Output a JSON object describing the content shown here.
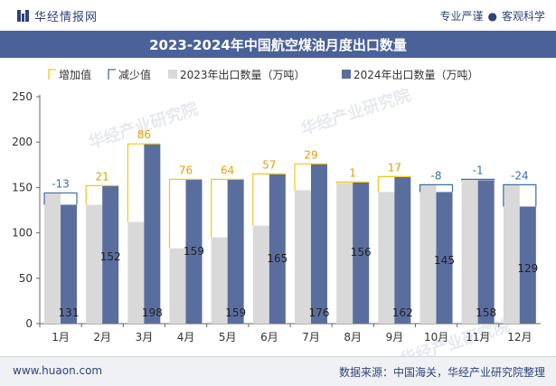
{
  "header": {
    "brand": "华经情报网",
    "slogan_left": "专业严谨",
    "slogan_right": "客观科学"
  },
  "title": "2023-2024年中国航空煤油月度出口数量",
  "watermark": "华经产业研究院",
  "footer": {
    "site": "www.huaon.com",
    "source": "数据来源：中国海关，华经产业研究院整理"
  },
  "colors": {
    "bar2023": "#d9d9d9",
    "bar2024": "#5a6e9e",
    "increase": "#f5c518",
    "decrease": "#3a6fa1",
    "header_bg": "#4a6299",
    "label_increase": "#e5a000",
    "label_decrease": "#3b6fa3"
  },
  "chart_data": {
    "type": "bar",
    "categories": [
      "1月",
      "2月",
      "3月",
      "4月",
      "5月",
      "6月",
      "7月",
      "8月",
      "9月",
      "10月",
      "11月",
      "12月"
    ],
    "series": [
      {
        "name": "2023年出口数量（万吨）",
        "values": [
          144,
          131,
          112,
          83,
          95,
          108,
          147,
          155,
          145,
          153,
          159,
          153
        ]
      },
      {
        "name": "2024年出口数量（万吨）",
        "values": [
          131,
          152,
          198,
          159,
          159,
          165,
          176,
          156,
          162,
          145,
          158,
          129
        ]
      }
    ],
    "change": [
      -13,
      21,
      86,
      76,
      64,
      57,
      29,
      1,
      17,
      -8,
      -1,
      -24
    ],
    "legend": [
      "增加值",
      "减少值",
      "2023年出口数量（万吨）",
      "2024年出口数量（万吨）"
    ],
    "yticks": [
      0,
      50,
      100,
      150,
      200,
      250
    ],
    "ylim": [
      0,
      250
    ],
    "legend_position": "top",
    "grid": false
  }
}
